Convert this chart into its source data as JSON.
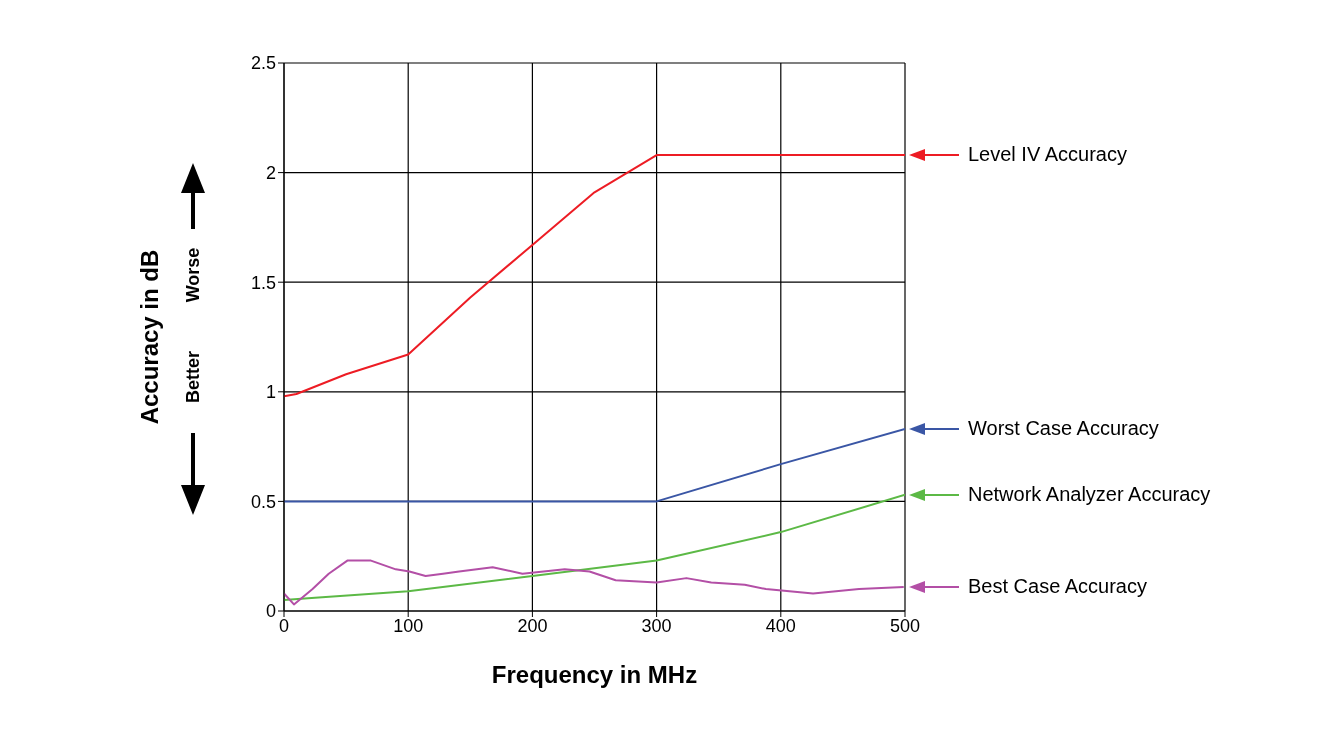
{
  "chart_data": {
    "type": "line",
    "xlabel": "Frequency in MHz",
    "ylabel": "Accuracy in dB",
    "xlim": [
      0,
      500
    ],
    "xticks": [
      0,
      100,
      200,
      300,
      400,
      500
    ],
    "ylim": [
      0,
      2.5
    ],
    "yticks": [
      0,
      0.5,
      1,
      1.5,
      2,
      2.5
    ],
    "grid": true,
    "legend": "right",
    "marker": "none",
    "annotations": [
      "Better",
      "Worse"
    ],
    "series": [
      {
        "name": "Level IV Accuracy",
        "color": "#ed1c24",
        "x": [
          0,
          10,
          50,
          100,
          150,
          200,
          250,
          300,
          500
        ],
        "values": [
          0.98,
          0.99,
          1.08,
          1.17,
          1.43,
          1.67,
          1.91,
          2.08,
          2.08
        ]
      },
      {
        "name": "Worst Case Accuracy",
        "color": "#3a56a5",
        "x": [
          0,
          300,
          400,
          500
        ],
        "values": [
          0.5,
          0.5,
          0.67,
          0.83
        ]
      },
      {
        "name": "Network Analyzer Accuracy",
        "color": "#5cb946",
        "x": [
          0,
          25,
          100,
          200,
          300,
          400,
          500
        ],
        "values": [
          0.05,
          0.06,
          0.09,
          0.16,
          0.23,
          0.36,
          0.53
        ]
      },
      {
        "name": "Best Case Accuracy",
        "color": "#b34fa6",
        "x": [
          0,
          8,
          23,
          36,
          51,
          70,
          90,
          101,
          114,
          128,
          141,
          168,
          192,
          226,
          246,
          267,
          300,
          324,
          344,
          371,
          388,
          426,
          463,
          499
        ],
        "values": [
          0.08,
          0.03,
          0.1,
          0.17,
          0.23,
          0.23,
          0.19,
          0.18,
          0.16,
          0.17,
          0.18,
          0.2,
          0.17,
          0.19,
          0.18,
          0.14,
          0.13,
          0.15,
          0.13,
          0.12,
          0.1,
          0.08,
          0.1,
          0.11
        ]
      }
    ]
  }
}
